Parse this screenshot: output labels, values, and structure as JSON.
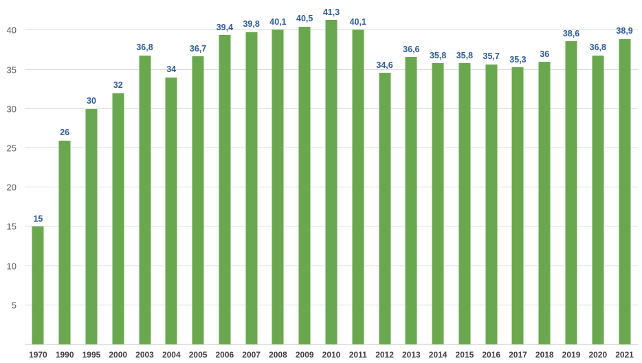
{
  "chart_data": {
    "type": "bar",
    "title": "",
    "xlabel": "",
    "ylabel": "",
    "categories": [
      "1970",
      "1990",
      "1995",
      "2000",
      "2003",
      "2004",
      "2005",
      "2006",
      "2007",
      "2008",
      "2009",
      "2010",
      "2011",
      "2012",
      "2013",
      "2014",
      "2015",
      "2016",
      "2017",
      "2018",
      "2019",
      "2020",
      "2021"
    ],
    "values": [
      15,
      26,
      30,
      32,
      36.8,
      34,
      36.7,
      39.4,
      39.8,
      40.1,
      40.5,
      41.3,
      40.1,
      34.6,
      36.6,
      35.8,
      35.8,
      35.7,
      35.3,
      36,
      38.6,
      36.8,
      38.9
    ],
    "value_labels": [
      "15",
      "26",
      "30",
      "32",
      "36,8",
      "34",
      "36,7",
      "39,4",
      "39,8",
      "40,1",
      "40,5",
      "41,3",
      "40,1",
      "34,6",
      "36,6",
      "35,8",
      "35,8",
      "35,7",
      "35,3",
      "36",
      "38,6",
      "36,8",
      "38,9"
    ],
    "yticks": [
      5,
      10,
      15,
      20,
      25,
      30,
      35,
      40
    ],
    "ytick_labels": [
      "5",
      "10",
      "15",
      "20",
      "25",
      "30",
      "35",
      "40"
    ],
    "gridlines": [
      0,
      5,
      10,
      15,
      20,
      25,
      30,
      35,
      40
    ],
    "ylim": [
      0,
      43
    ],
    "y_scale_max": 43,
    "grid": true,
    "legend_position": "none",
    "bar_color": "#6aa84f",
    "label_color": "#2e5b9c",
    "axis_label_color": "#404040",
    "ytick_color": "#595959",
    "gridline_color": "#d9d9d9"
  }
}
